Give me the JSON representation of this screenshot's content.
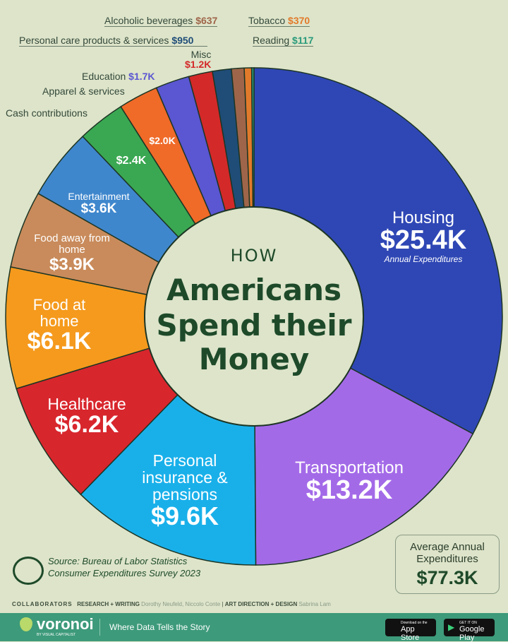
{
  "chart_data": {
    "type": "pie",
    "title": "HOW Americans Spend their Money",
    "categories": [
      "Housing",
      "Transportation",
      "Personal insurance & pensions",
      "Healthcare",
      "Food at home",
      "Food away from home",
      "Entertainment",
      "Cash contributions",
      "Apparel & services",
      "Education",
      "Misc",
      "Personal care products & services",
      "Alcoholic beverages",
      "Tobacco",
      "Reading"
    ],
    "values": [
      25400,
      13200,
      9600,
      6200,
      6100,
      3900,
      3600,
      2400,
      2000,
      1700,
      1200,
      950,
      637,
      370,
      117
    ],
    "value_labels": [
      "$25.4K",
      "$13.2K",
      "$9.6K",
      "$6.2K",
      "$6.1K",
      "$3.9K",
      "$3.6K",
      "$2.4K",
      "$2.0K",
      "$1.7K",
      "$1.2K",
      "$950",
      "$637",
      "$370",
      "$117"
    ],
    "colors": [
      "#2f47b5",
      "#a36ae8",
      "#19b0ea",
      "#d8262d",
      "#f59a1d",
      "#c98b5b",
      "#3f87cd",
      "#3aa852",
      "#f06a28",
      "#5b56d2",
      "#d42929",
      "#1f4d78",
      "#9f654a",
      "#e27a2b",
      "#2a9a7b"
    ],
    "donut": true,
    "housing_note": "Annual Expenditures"
  },
  "title": {
    "how": "HOW",
    "line1": "Americans",
    "line2": "Spend their",
    "line3": "Money"
  },
  "total": {
    "label": "Average Annual Expenditures",
    "value": "$77.3K"
  },
  "source": {
    "line1": "Source: Bureau of Labor Statistics",
    "line2": "Consumer Expenditures Survey 2023"
  },
  "credits": {
    "collab": "COLLABORATORS",
    "rw": "RESEARCH + WRITING",
    "rw_names": "Dorothy Neufeld, Niccolo Conte",
    "ad": "ART DIRECTION + DESIGN",
    "ad_names": "Sabrina Lam"
  },
  "footer": {
    "brand": "voronoi",
    "brand_sub": "BY VISUAL CAPITALIST",
    "tagline": "Where Data Tells the Story",
    "app_store": "App Store",
    "app_store_sub": "Download on the",
    "google_play": "Google Play",
    "google_play_sub": "GET IT ON"
  }
}
